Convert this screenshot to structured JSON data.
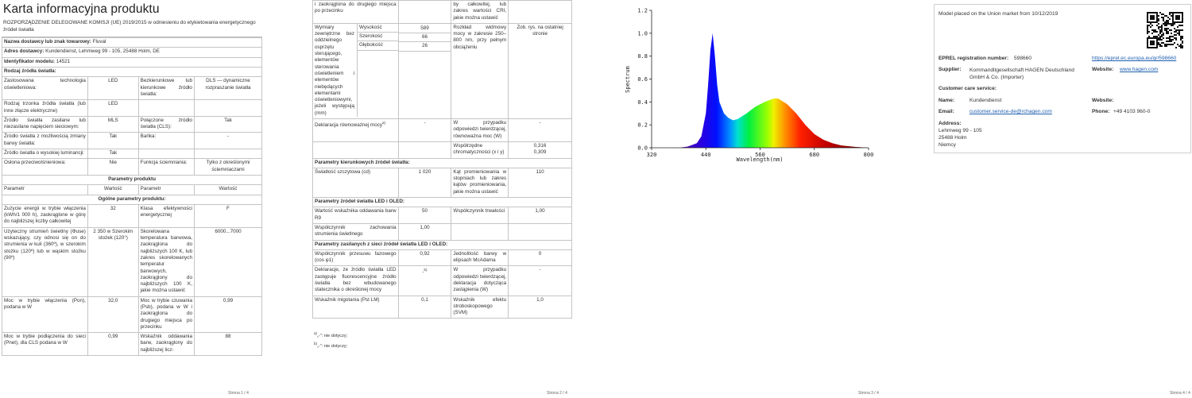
{
  "page1": {
    "title": "Karta informacyjna produktu",
    "subtitle": "ROZPORZĄDZENIE DELEGOWANE KOMISJI (UE) 2019/2015 w odniesieniu do etykietowania energetycznego źródeł światła",
    "rows": [
      {
        "label": "Nazwa dostawcy lub znak towarowy:",
        "value": "Fluval"
      },
      {
        "label": "Adres dostawcy:",
        "value": "Kundendienst, Lehmweg 99 - 105, 25488 Holm, DE"
      },
      {
        "label": "Identyfikator modelu:",
        "value": "14521"
      },
      {
        "heading": "Rodzaj źródła światła:"
      },
      {
        "p1": "Zastosowana technologia oświetleniowa:",
        "v1": "LED",
        "p2": "Bezkierunkowe lub kierunkowe źródło światła:",
        "v2": "DLS — dynamiczne rozpraszanie światła"
      },
      {
        "p1": "Rodzaj trzonka źródła światła (lub inne złącze elektryczne)",
        "v1": "LED"
      },
      {
        "p1": "Źródło światła zasilane lub niezasilane napięciem sieciowym:",
        "v1": "MLS",
        "p2": "Połączone źródło światła (CLS):",
        "v2": "Tak"
      },
      {
        "p1": "Źródło światła z możliwością zmiany barwy światła:",
        "v1": "Tak",
        "p2": "Bańka:",
        "v2": "-"
      },
      {
        "p1": "Źródło światła o wysokiej luminancji:",
        "v1": "Tak"
      },
      {
        "p1": "Osłona przeciwolśnieniowa:",
        "v1": "Nie",
        "p2": "Funkcja ściemniania:",
        "v2": "Tylko z określonymi ściemniaczami"
      },
      {
        "center": "Parametry produktu"
      },
      {
        "p1": "Parametr",
        "v1": "Wartość",
        "p2": "Parametr",
        "v2": "Wartość"
      },
      {
        "center": "Ogólne parametry produktu:"
      },
      {
        "p1": "Zużycie energii w trybie włączenia (kWh/1 000 h), zaokrąglone w górę do najbliższej liczby całkowitej",
        "v1": "32",
        "p2": "Klasa efektywności energetycznej",
        "v2": "F"
      },
      {
        "p1": "Użyteczny strumień świetlny (Φuse) wskazujący, czy odnosi się on do strumienia w kuli (360º), w szerokim stożku (120º) lub w wąskim stożku (90º)",
        "v1": "2 350 w Szerokim stożek (120°)",
        "p2": "Skorelowana temperatura barwowa, zaokrąglona do najbliższych 100 K, lub zakres skorelowanych temperatur barwowych, zaokrąglony do najbliższych 100 K, jakie można ustawić",
        "v2": "6000...7000"
      },
      {
        "p1": "Moc w trybie włączenia (Pon), podana w W",
        "v1": "32,0",
        "p2": "Moc w trybie czuwania (Psb), podana w W i zaokrąglona do drugiego miejsca po przecinku",
        "v2": "0,99"
      },
      {
        "p1": "Moc w trybie podłączenia do sieci (Pnet), dla CLS podana w W",
        "v1": "0,99",
        "p2": "Wskaźnik oddawania barw, zaokrąglony do najbliższej licz-",
        "v2": "88"
      }
    ],
    "footer": "Strona 1 / 4"
  },
  "page2": {
    "rows": [
      {
        "p1": "i zaokrąglona do drugiego miejsca po przecinku",
        "p2": "by całkowitej, lub zakres wartości CRI, jakie można ustawić"
      },
      {
        "p1": "Wymiary zewnętrzne bez oddzielnego osprzętu sterującego, elementów sterowania oświetleniem i elementów niebędących elementami oświetleniowymi, jeżeli występują (mm)",
        "dims": [
          {
            "name": "Wysokość",
            "value": "589"
          },
          {
            "name": "Szerokość",
            "value": "66"
          },
          {
            "name": "Głębokość",
            "value": "26"
          }
        ],
        "p2": "Rozkład widmowy mocy w zakresie 250–800 nm, przy pełnym obciążeniu",
        "v2": "Zob. rys. na ostatniej stronie"
      },
      {
        "p1": "Deklaracja równoważnej mocy",
        "p1_note": "a)",
        "v1": "-",
        "p2": "W przypadku odpowiedzi twierdzącej, równoważna moc (W)",
        "v2": "-"
      },
      {
        "p2": "Współrzędne chromatyczności (x i y)",
        "v2": [
          "0,316",
          "0,309"
        ]
      },
      {
        "heading": "Parametry kierunkowych źródeł światła:"
      },
      {
        "p1": "Światłość szczytowa (cd)",
        "v1": "1 020",
        "p2": "Kąt promieniowania w stopniach lub zakres kątów promieniowania, jakie można ustawić",
        "v2": "110"
      },
      {
        "heading": "Parametry źródeł światła LED i OLED:"
      },
      {
        "p1": "Wartość wskaźnika oddawania barw R9",
        "v1": "50",
        "p2": "Współczynnik trwałości",
        "v2": "1,00"
      },
      {
        "p1": "Współczynnik zachowania strumienia świetlnego",
        "v1": "1,00"
      },
      {
        "heading": "Parametry zasilanych z sieci źródeł światła LED i OLED:"
      },
      {
        "p1": "Współczynnik przesuwu fazowego (cos φ1)",
        "v1": "0,92",
        "p2": "Jednolitość barwy w elipsach McAdama",
        "v2": "0"
      },
      {
        "p1": "Deklaracje, że źródło światła LED zastępuje fluorescencyjne źródło światła bez wbudowanego statecznika o określonej mocy",
        "v1": "-",
        "v1_note": "b)",
        "p2": "W przypadku odpowiedzi twierdzącej, deklaracja dotycząca zastąpienia (W)",
        "v2": "-"
      },
      {
        "p1": "Wskaźnik migotania (Pst LM)",
        "v1": "0,1",
        "p2": "Wskaźnik efektu stroboskopowego (SVM)",
        "v2": "1,0"
      }
    ],
    "footnotes": [
      {
        "mark": "a)",
        "text": "„-”: nie dotyczy;"
      },
      {
        "mark": "b)",
        "text": "„-”: nie dotyczy;"
      }
    ],
    "footer": "Strona 2 / 4"
  },
  "chart_data": {
    "type": "area",
    "ylabel": "Spectrum",
    "xlabel": "Wavelength(nm)",
    "x": [
      380,
      400,
      420,
      430,
      440,
      445,
      450,
      455,
      460,
      465,
      470,
      480,
      490,
      500,
      510,
      530,
      550,
      570,
      590,
      600,
      620,
      640,
      660,
      680,
      700,
      720,
      740,
      770,
      800
    ],
    "y": [
      0,
      0.01,
      0.04,
      0.1,
      0.3,
      0.55,
      0.85,
      1.0,
      0.8,
      0.55,
      0.4,
      0.3,
      0.26,
      0.24,
      0.25,
      0.3,
      0.36,
      0.4,
      0.43,
      0.43,
      0.38,
      0.3,
      0.2,
      0.12,
      0.07,
      0.04,
      0.02,
      0.008,
      0
    ],
    "xlim": [
      320,
      800
    ],
    "xticks": [
      320,
      440,
      560,
      680,
      800
    ],
    "ylim": [
      0,
      1.2
    ],
    "yticks": [
      {
        "value": 0,
        "label": "0.0"
      },
      {
        "value": 0.2,
        "label": "0.2"
      },
      {
        "value": 0.4,
        "label": "0.4"
      },
      {
        "value": 0.6,
        "label": "0.6"
      },
      {
        "value": 0.8,
        "label": "0.8"
      },
      {
        "value": 1.0,
        "label": "1.0"
      },
      {
        "value": 1.2,
        "label": "1.2"
      }
    ],
    "footer": "Strona 3 / 4"
  },
  "page4": {
    "placed": "Model placed on the Union market from 10/12/2019",
    "eprel_label": "EPREL registration number:",
    "eprel_value": "598660",
    "eprel_link": "https://eprel.ec.europa.eu/qr/598660",
    "supplier_label": "Supplier:",
    "supplier_value": "Kommanditgesellschaft HAGEN Deutschland GmbH & Co. (Importer)",
    "website_label": "Website:",
    "website_value": "www.hagen.com",
    "care_label": "Customer care service:",
    "name_label": "Name:",
    "name_value": "Kundendienst",
    "care_website_label": "Website:",
    "email_label": "Email:",
    "email_value": "customer.service-de@rchagen.com",
    "phone_label": "Phone:",
    "phone_value": "+49 4103 960-0",
    "address_label": "Address:",
    "address_lines": [
      "Lehmweg  99 - 105",
      "25488 Holm",
      "Niemcy"
    ],
    "footer": "Strona 4 / 4"
  }
}
